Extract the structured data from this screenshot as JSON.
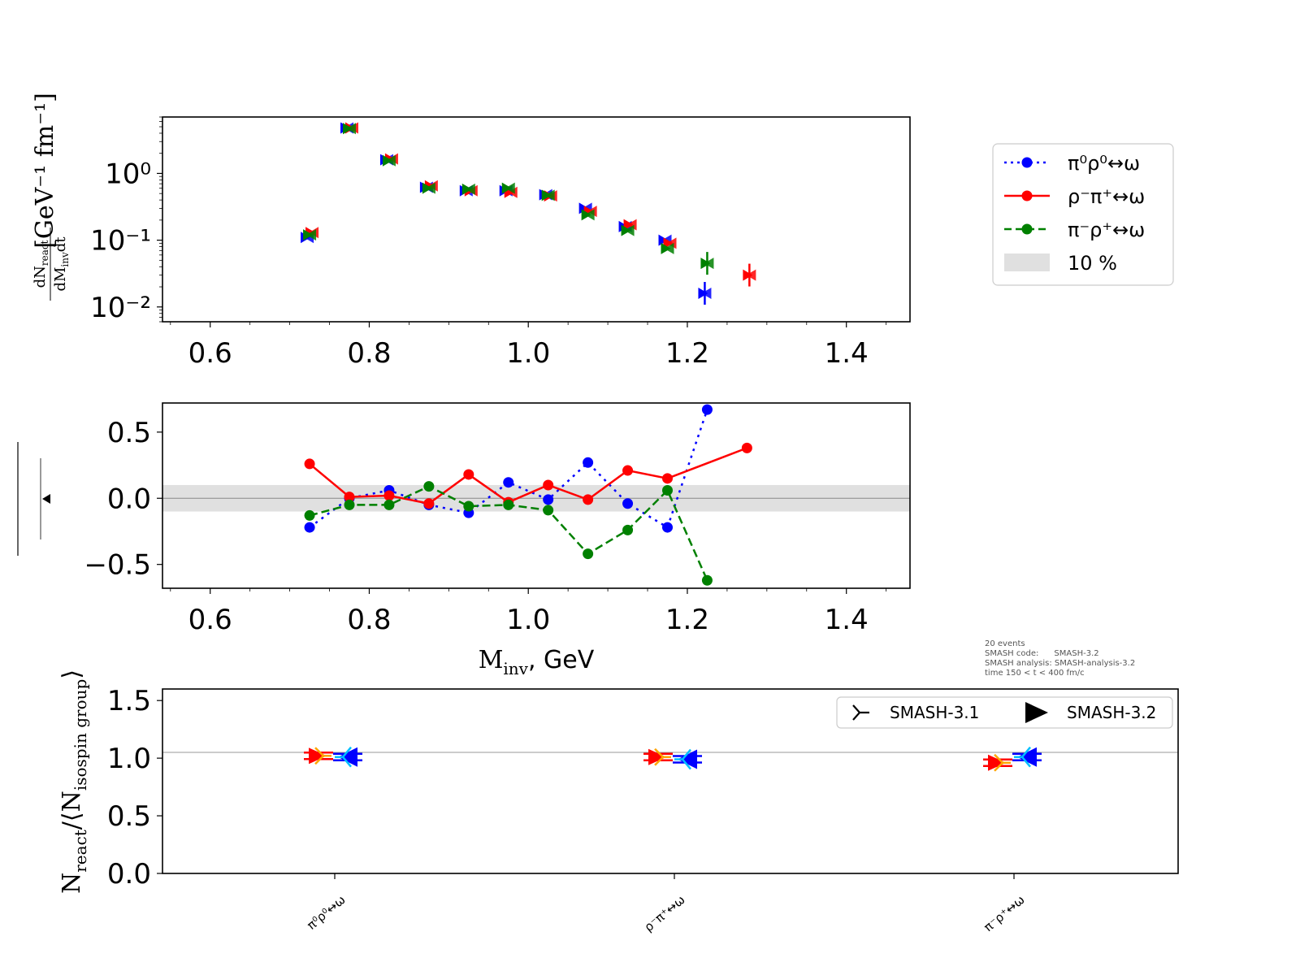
{
  "colors": {
    "blue": "#0000ff",
    "red": "#ff0000",
    "green": "#008000",
    "cyan": "#00bfff",
    "orange": "#ffa500",
    "band": "#e0e0e0"
  },
  "legend": {
    "items": [
      "π⁰ρ⁰↔ω",
      "ρ⁻π⁺↔ω",
      "π⁻ρ⁺↔ω",
      "10 %"
    ]
  },
  "info": {
    "line1": "20 events",
    "line2": "SMASH code:      SMASH-3.2",
    "line3": "SMASH analysis: SMASH-analysis-3.2",
    "line4": "time 150 < t < 400 fm/c"
  },
  "version_legend": {
    "old": "SMASH-3.1",
    "new": "SMASH-3.2"
  },
  "chart_data": [
    {
      "type": "scatter",
      "panel": "top",
      "yscale": "log",
      "xlim": [
        0.54,
        1.48
      ],
      "ylim": [
        0.006,
        7
      ],
      "xticks": [
        "0.6",
        "0.8",
        "1.0",
        "1.2",
        "1.4"
      ],
      "yticks": [
        "10⁰",
        "10⁻¹",
        "10⁻²"
      ],
      "ylabel_num": "dN",
      "ylabel_num_sub": "react",
      "ylabel_den": "dM",
      "ylabel_den_sub": "inv",
      "ylabel_den_tail": "dt",
      "ylabel_unit": "[GeV⁻¹ fm⁻¹]",
      "x": [
        0.725,
        0.775,
        0.825,
        0.875,
        0.925,
        0.975,
        1.025,
        1.075,
        1.125,
        1.175,
        1.225,
        1.275
      ],
      "series": [
        {
          "name": "π⁰ρ⁰↔ω",
          "color": "blue",
          "values": [
            0.11,
            4.8,
            1.6,
            0.62,
            0.55,
            0.55,
            0.48,
            0.3,
            0.16,
            0.1,
            0.016,
            null
          ]
        },
        {
          "name": "ρ⁻π⁺↔ω",
          "color": "red",
          "values": [
            0.13,
            4.8,
            1.65,
            0.65,
            0.55,
            0.52,
            0.46,
            0.27,
            0.17,
            0.09,
            null,
            0.03
          ]
        },
        {
          "name": "π⁻ρ⁺↔ω",
          "color": "green",
          "values": [
            0.12,
            4.7,
            1.55,
            0.6,
            0.58,
            0.6,
            0.47,
            0.24,
            0.14,
            0.075,
            0.045,
            null
          ]
        }
      ]
    },
    {
      "type": "line",
      "panel": "middle",
      "xlim": [
        0.54,
        1.48
      ],
      "ylim": [
        -0.68,
        0.72
      ],
      "xticks": [
        "0.6",
        "0.8",
        "1.0",
        "1.2",
        "1.4"
      ],
      "yticks": [
        "0.5",
        "0.0",
        "−0.5"
      ],
      "xlabel_main": "M",
      "xlabel_sub": "inv",
      "xlabel_tail": ", GeV",
      "band": [
        -0.1,
        0.1
      ],
      "series": [
        {
          "name": "π⁰ρ⁰↔ω",
          "color": "blue",
          "dash": "3,6",
          "x": [
            0.725,
            0.775,
            0.825,
            0.875,
            0.925,
            0.975,
            1.025,
            1.075,
            1.125,
            1.175,
            1.225
          ],
          "values": [
            -0.22,
            0.0,
            0.06,
            -0.05,
            -0.11,
            0.12,
            -0.01,
            0.27,
            -0.04,
            -0.22,
            0.67
          ]
        },
        {
          "name": "ρ⁻π⁺↔ω",
          "color": "red",
          "dash": "",
          "x": [
            0.725,
            0.775,
            0.825,
            0.875,
            0.925,
            0.975,
            1.025,
            1.075,
            1.125,
            1.175,
            1.275
          ],
          "values": [
            0.26,
            0.01,
            0.02,
            -0.04,
            0.18,
            -0.03,
            0.1,
            -0.01,
            0.21,
            0.15,
            0.38
          ]
        },
        {
          "name": "π⁻ρ⁺↔ω",
          "color": "green",
          "dash": "10,5",
          "x": [
            0.725,
            0.775,
            0.825,
            0.875,
            0.925,
            0.975,
            1.025,
            1.075,
            1.125,
            1.175,
            1.225
          ],
          "values": [
            -0.13,
            -0.05,
            -0.05,
            0.09,
            -0.06,
            -0.05,
            -0.09,
            -0.42,
            -0.24,
            0.06,
            -0.62
          ]
        }
      ]
    },
    {
      "type": "scatter",
      "panel": "bottom",
      "ylim": [
        0.0,
        1.6
      ],
      "yticks": [
        "1.5",
        "1.0",
        "0.5",
        "0.0"
      ],
      "categories": [
        "π⁰ρ⁰↔ω",
        "ρ⁻π⁺↔ω",
        "π⁻ρ⁺↔ω"
      ],
      "ylabel_main": "N",
      "ylabel_sub": "react",
      "ylabel_mid": "/⟨N",
      "ylabel_sub2": "isospin group",
      "ylabel_tail": "⟩",
      "series": [
        {
          "name": "SMASH-3.1",
          "values": [
            1.02,
            1.01,
            0.96
          ]
        },
        {
          "name": "SMASH-3.2",
          "values": [
            1.01,
            0.99,
            1.01
          ]
        }
      ]
    }
  ]
}
